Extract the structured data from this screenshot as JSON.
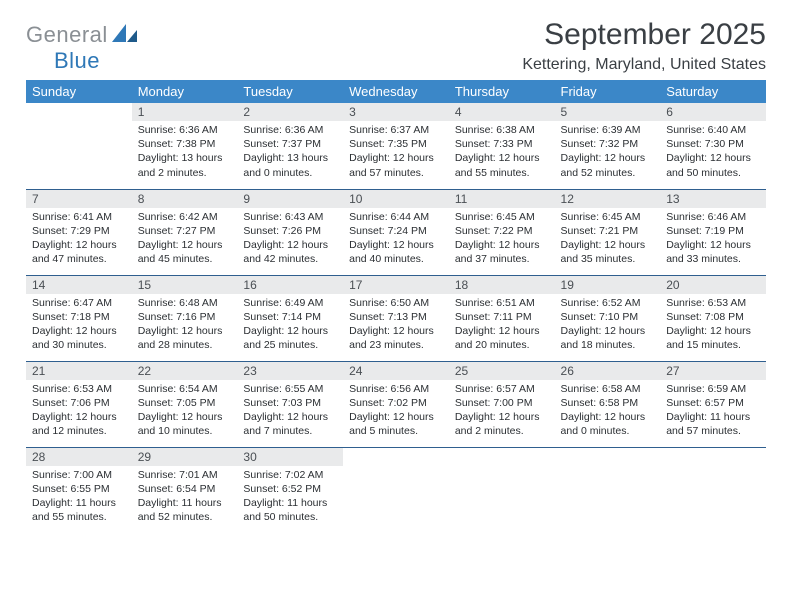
{
  "logo": {
    "part1": "General",
    "part2": "Blue"
  },
  "title": "September 2025",
  "location": "Kettering, Maryland, United States",
  "colors": {
    "header_bg": "#3b87c8",
    "header_text": "#ffffff",
    "daynum_bg": "#e9eaeb",
    "rule": "#2f5f8f",
    "logo_gray": "#8a8f94",
    "logo_blue": "#2f78b7",
    "body_text": "#2b2f33"
  },
  "weekdays": [
    "Sunday",
    "Monday",
    "Tuesday",
    "Wednesday",
    "Thursday",
    "Friday",
    "Saturday"
  ],
  "weeks": [
    [
      null,
      {
        "n": "1",
        "sr": "Sunrise: 6:36 AM",
        "ss": "Sunset: 7:38 PM",
        "dl": "Daylight: 13 hours and 2 minutes."
      },
      {
        "n": "2",
        "sr": "Sunrise: 6:36 AM",
        "ss": "Sunset: 7:37 PM",
        "dl": "Daylight: 13 hours and 0 minutes."
      },
      {
        "n": "3",
        "sr": "Sunrise: 6:37 AM",
        "ss": "Sunset: 7:35 PM",
        "dl": "Daylight: 12 hours and 57 minutes."
      },
      {
        "n": "4",
        "sr": "Sunrise: 6:38 AM",
        "ss": "Sunset: 7:33 PM",
        "dl": "Daylight: 12 hours and 55 minutes."
      },
      {
        "n": "5",
        "sr": "Sunrise: 6:39 AM",
        "ss": "Sunset: 7:32 PM",
        "dl": "Daylight: 12 hours and 52 minutes."
      },
      {
        "n": "6",
        "sr": "Sunrise: 6:40 AM",
        "ss": "Sunset: 7:30 PM",
        "dl": "Daylight: 12 hours and 50 minutes."
      }
    ],
    [
      {
        "n": "7",
        "sr": "Sunrise: 6:41 AM",
        "ss": "Sunset: 7:29 PM",
        "dl": "Daylight: 12 hours and 47 minutes."
      },
      {
        "n": "8",
        "sr": "Sunrise: 6:42 AM",
        "ss": "Sunset: 7:27 PM",
        "dl": "Daylight: 12 hours and 45 minutes."
      },
      {
        "n": "9",
        "sr": "Sunrise: 6:43 AM",
        "ss": "Sunset: 7:26 PM",
        "dl": "Daylight: 12 hours and 42 minutes."
      },
      {
        "n": "10",
        "sr": "Sunrise: 6:44 AM",
        "ss": "Sunset: 7:24 PM",
        "dl": "Daylight: 12 hours and 40 minutes."
      },
      {
        "n": "11",
        "sr": "Sunrise: 6:45 AM",
        "ss": "Sunset: 7:22 PM",
        "dl": "Daylight: 12 hours and 37 minutes."
      },
      {
        "n": "12",
        "sr": "Sunrise: 6:45 AM",
        "ss": "Sunset: 7:21 PM",
        "dl": "Daylight: 12 hours and 35 minutes."
      },
      {
        "n": "13",
        "sr": "Sunrise: 6:46 AM",
        "ss": "Sunset: 7:19 PM",
        "dl": "Daylight: 12 hours and 33 minutes."
      }
    ],
    [
      {
        "n": "14",
        "sr": "Sunrise: 6:47 AM",
        "ss": "Sunset: 7:18 PM",
        "dl": "Daylight: 12 hours and 30 minutes."
      },
      {
        "n": "15",
        "sr": "Sunrise: 6:48 AM",
        "ss": "Sunset: 7:16 PM",
        "dl": "Daylight: 12 hours and 28 minutes."
      },
      {
        "n": "16",
        "sr": "Sunrise: 6:49 AM",
        "ss": "Sunset: 7:14 PM",
        "dl": "Daylight: 12 hours and 25 minutes."
      },
      {
        "n": "17",
        "sr": "Sunrise: 6:50 AM",
        "ss": "Sunset: 7:13 PM",
        "dl": "Daylight: 12 hours and 23 minutes."
      },
      {
        "n": "18",
        "sr": "Sunrise: 6:51 AM",
        "ss": "Sunset: 7:11 PM",
        "dl": "Daylight: 12 hours and 20 minutes."
      },
      {
        "n": "19",
        "sr": "Sunrise: 6:52 AM",
        "ss": "Sunset: 7:10 PM",
        "dl": "Daylight: 12 hours and 18 minutes."
      },
      {
        "n": "20",
        "sr": "Sunrise: 6:53 AM",
        "ss": "Sunset: 7:08 PM",
        "dl": "Daylight: 12 hours and 15 minutes."
      }
    ],
    [
      {
        "n": "21",
        "sr": "Sunrise: 6:53 AM",
        "ss": "Sunset: 7:06 PM",
        "dl": "Daylight: 12 hours and 12 minutes."
      },
      {
        "n": "22",
        "sr": "Sunrise: 6:54 AM",
        "ss": "Sunset: 7:05 PM",
        "dl": "Daylight: 12 hours and 10 minutes."
      },
      {
        "n": "23",
        "sr": "Sunrise: 6:55 AM",
        "ss": "Sunset: 7:03 PM",
        "dl": "Daylight: 12 hours and 7 minutes."
      },
      {
        "n": "24",
        "sr": "Sunrise: 6:56 AM",
        "ss": "Sunset: 7:02 PM",
        "dl": "Daylight: 12 hours and 5 minutes."
      },
      {
        "n": "25",
        "sr": "Sunrise: 6:57 AM",
        "ss": "Sunset: 7:00 PM",
        "dl": "Daylight: 12 hours and 2 minutes."
      },
      {
        "n": "26",
        "sr": "Sunrise: 6:58 AM",
        "ss": "Sunset: 6:58 PM",
        "dl": "Daylight: 12 hours and 0 minutes."
      },
      {
        "n": "27",
        "sr": "Sunrise: 6:59 AM",
        "ss": "Sunset: 6:57 PM",
        "dl": "Daylight: 11 hours and 57 minutes."
      }
    ],
    [
      {
        "n": "28",
        "sr": "Sunrise: 7:00 AM",
        "ss": "Sunset: 6:55 PM",
        "dl": "Daylight: 11 hours and 55 minutes."
      },
      {
        "n": "29",
        "sr": "Sunrise: 7:01 AM",
        "ss": "Sunset: 6:54 PM",
        "dl": "Daylight: 11 hours and 52 minutes."
      },
      {
        "n": "30",
        "sr": "Sunrise: 7:02 AM",
        "ss": "Sunset: 6:52 PM",
        "dl": "Daylight: 11 hours and 50 minutes."
      },
      null,
      null,
      null,
      null
    ]
  ]
}
